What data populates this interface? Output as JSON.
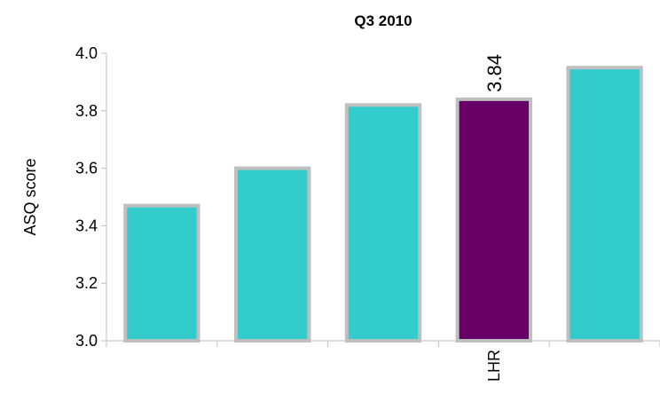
{
  "chart_data": {
    "type": "bar",
    "title": "Q3 2010",
    "xlabel": "",
    "ylabel": "ASQ score",
    "categories": [
      "",
      "",
      "",
      "LHR",
      ""
    ],
    "values": [
      3.47,
      3.6,
      3.82,
      3.84,
      3.95
    ],
    "ylim": [
      3.0,
      4.0
    ],
    "yticks": [
      "3.0",
      "3.2",
      "3.4",
      "3.6",
      "3.8",
      "4.0"
    ],
    "data_labels": [
      "",
      "",
      "",
      "3.84",
      ""
    ],
    "bar_colors": [
      "#33CCCC",
      "#33CCCC",
      "#33CCCC",
      "#660066",
      "#33CCCC"
    ],
    "bar_border_color": "#BFBFBF",
    "grid": false,
    "legend": "none"
  }
}
